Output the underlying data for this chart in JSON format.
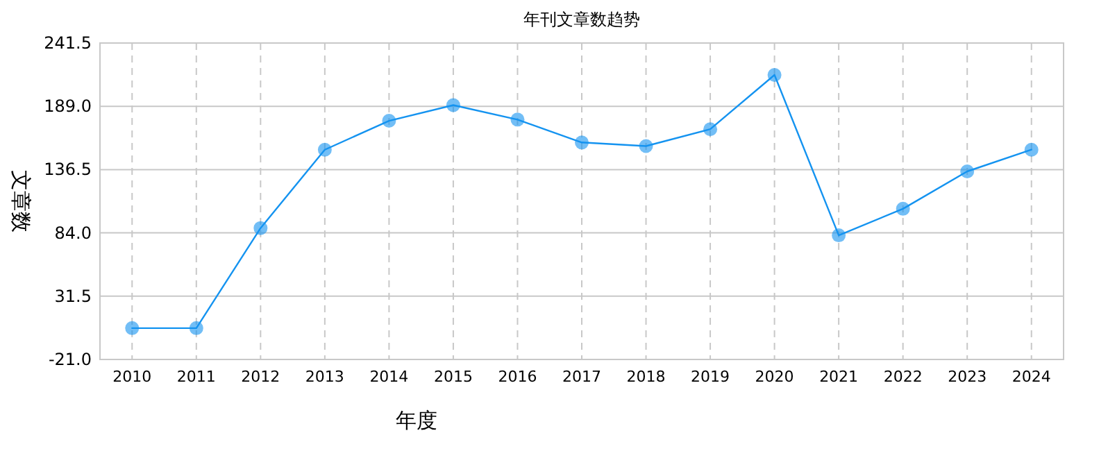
{
  "chart_data": {
    "type": "line",
    "title": "年刊文章数趋势",
    "xlabel": "年度",
    "ylabel": "文章数",
    "categories": [
      "2010",
      "2011",
      "2012",
      "2013",
      "2014",
      "2015",
      "2016",
      "2017",
      "2018",
      "2019",
      "2020",
      "2021",
      "2022",
      "2023",
      "2024"
    ],
    "series": [
      {
        "color": "#1493f0",
        "values": [
          5,
          5,
          88,
          153,
          177,
          190,
          178,
          159,
          156,
          170,
          215,
          82,
          104,
          135,
          153
        ]
      }
    ],
    "ylim": [
      -21,
      241.5
    ],
    "yticks": [
      {
        "value": -21,
        "label": "-21.0"
      },
      31.5,
      {
        "value": 84,
        "label": "84.0"
      },
      136.5,
      {
        "value": 189,
        "label": "189.0"
      },
      241.5
    ],
    "grid": true,
    "marker": "circle",
    "line_style": "solid"
  }
}
